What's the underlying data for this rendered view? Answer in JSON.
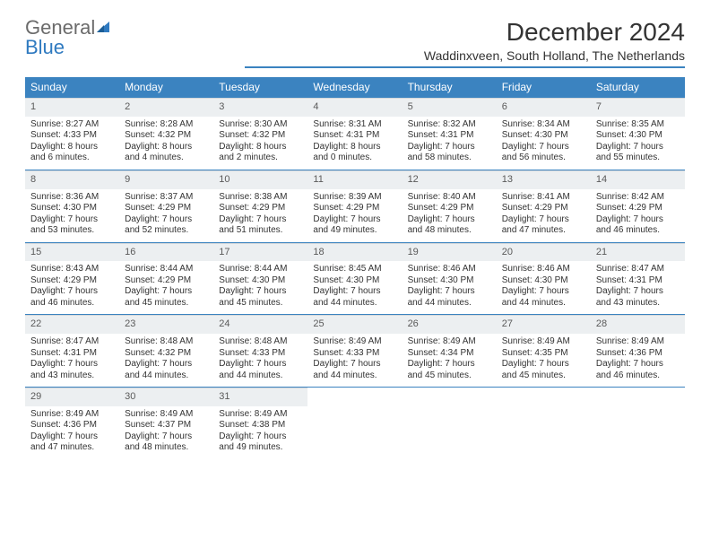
{
  "logo": {
    "word1": "General",
    "word2": "Blue"
  },
  "title": "December 2024",
  "location": "Waddinxveen, South Holland, The Netherlands",
  "colors": {
    "header_bg": "#3b83c0",
    "header_fg": "#ffffff",
    "daynum_bg": "#eceff1",
    "rule": "#3b83c0",
    "logo_gray": "#6b6b6b",
    "logo_blue": "#2f7ac0"
  },
  "day_headers": [
    "Sunday",
    "Monday",
    "Tuesday",
    "Wednesday",
    "Thursday",
    "Friday",
    "Saturday"
  ],
  "weeks": [
    [
      {
        "n": "1",
        "sr": "8:27 AM",
        "ss": "4:33 PM",
        "dl": "8 hours and 6 minutes."
      },
      {
        "n": "2",
        "sr": "8:28 AM",
        "ss": "4:32 PM",
        "dl": "8 hours and 4 minutes."
      },
      {
        "n": "3",
        "sr": "8:30 AM",
        "ss": "4:32 PM",
        "dl": "8 hours and 2 minutes."
      },
      {
        "n": "4",
        "sr": "8:31 AM",
        "ss": "4:31 PM",
        "dl": "8 hours and 0 minutes."
      },
      {
        "n": "5",
        "sr": "8:32 AM",
        "ss": "4:31 PM",
        "dl": "7 hours and 58 minutes."
      },
      {
        "n": "6",
        "sr": "8:34 AM",
        "ss": "4:30 PM",
        "dl": "7 hours and 56 minutes."
      },
      {
        "n": "7",
        "sr": "8:35 AM",
        "ss": "4:30 PM",
        "dl": "7 hours and 55 minutes."
      }
    ],
    [
      {
        "n": "8",
        "sr": "8:36 AM",
        "ss": "4:30 PM",
        "dl": "7 hours and 53 minutes."
      },
      {
        "n": "9",
        "sr": "8:37 AM",
        "ss": "4:29 PM",
        "dl": "7 hours and 52 minutes."
      },
      {
        "n": "10",
        "sr": "8:38 AM",
        "ss": "4:29 PM",
        "dl": "7 hours and 51 minutes."
      },
      {
        "n": "11",
        "sr": "8:39 AM",
        "ss": "4:29 PM",
        "dl": "7 hours and 49 minutes."
      },
      {
        "n": "12",
        "sr": "8:40 AM",
        "ss": "4:29 PM",
        "dl": "7 hours and 48 minutes."
      },
      {
        "n": "13",
        "sr": "8:41 AM",
        "ss": "4:29 PM",
        "dl": "7 hours and 47 minutes."
      },
      {
        "n": "14",
        "sr": "8:42 AM",
        "ss": "4:29 PM",
        "dl": "7 hours and 46 minutes."
      }
    ],
    [
      {
        "n": "15",
        "sr": "8:43 AM",
        "ss": "4:29 PM",
        "dl": "7 hours and 46 minutes."
      },
      {
        "n": "16",
        "sr": "8:44 AM",
        "ss": "4:29 PM",
        "dl": "7 hours and 45 minutes."
      },
      {
        "n": "17",
        "sr": "8:44 AM",
        "ss": "4:30 PM",
        "dl": "7 hours and 45 minutes."
      },
      {
        "n": "18",
        "sr": "8:45 AM",
        "ss": "4:30 PM",
        "dl": "7 hours and 44 minutes."
      },
      {
        "n": "19",
        "sr": "8:46 AM",
        "ss": "4:30 PM",
        "dl": "7 hours and 44 minutes."
      },
      {
        "n": "20",
        "sr": "8:46 AM",
        "ss": "4:30 PM",
        "dl": "7 hours and 44 minutes."
      },
      {
        "n": "21",
        "sr": "8:47 AM",
        "ss": "4:31 PM",
        "dl": "7 hours and 43 minutes."
      }
    ],
    [
      {
        "n": "22",
        "sr": "8:47 AM",
        "ss": "4:31 PM",
        "dl": "7 hours and 43 minutes."
      },
      {
        "n": "23",
        "sr": "8:48 AM",
        "ss": "4:32 PM",
        "dl": "7 hours and 44 minutes."
      },
      {
        "n": "24",
        "sr": "8:48 AM",
        "ss": "4:33 PM",
        "dl": "7 hours and 44 minutes."
      },
      {
        "n": "25",
        "sr": "8:49 AM",
        "ss": "4:33 PM",
        "dl": "7 hours and 44 minutes."
      },
      {
        "n": "26",
        "sr": "8:49 AM",
        "ss": "4:34 PM",
        "dl": "7 hours and 45 minutes."
      },
      {
        "n": "27",
        "sr": "8:49 AM",
        "ss": "4:35 PM",
        "dl": "7 hours and 45 minutes."
      },
      {
        "n": "28",
        "sr": "8:49 AM",
        "ss": "4:36 PM",
        "dl": "7 hours and 46 minutes."
      }
    ],
    [
      {
        "n": "29",
        "sr": "8:49 AM",
        "ss": "4:36 PM",
        "dl": "7 hours and 47 minutes."
      },
      {
        "n": "30",
        "sr": "8:49 AM",
        "ss": "4:37 PM",
        "dl": "7 hours and 48 minutes."
      },
      {
        "n": "31",
        "sr": "8:49 AM",
        "ss": "4:38 PM",
        "dl": "7 hours and 49 minutes."
      },
      null,
      null,
      null,
      null
    ]
  ],
  "labels": {
    "sunrise": "Sunrise:",
    "sunset": "Sunset:",
    "daylight": "Daylight:"
  }
}
